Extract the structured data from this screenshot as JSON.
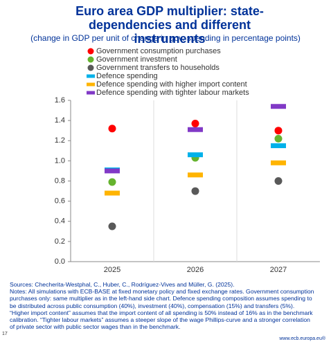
{
  "chart_data": {
    "type": "dot",
    "title": "Euro area GDP multiplier: state-dependencies and different instruments",
    "subtitle": "(change in GDP per unit of change in gov. spending in percentage points)",
    "categories": [
      "2025",
      "2026",
      "2027"
    ],
    "series": [
      {
        "name": "Government consumption purchases",
        "color": "#ff0000",
        "marker": "circle",
        "values": [
          1.32,
          1.37,
          1.3
        ]
      },
      {
        "name": "Government investment",
        "color": "#65b32e",
        "marker": "circle",
        "values": [
          0.79,
          1.03,
          1.22
        ]
      },
      {
        "name": "Government transfers to households",
        "color": "#595959",
        "marker": "circle",
        "values": [
          0.35,
          0.7,
          0.8
        ]
      },
      {
        "name": "Defence spending",
        "color": "#00b1ea",
        "marker": "dash",
        "values": [
          0.91,
          1.06,
          1.15
        ]
      },
      {
        "name": "Defence spending with higher import content",
        "color": "#ffb400",
        "marker": "dash",
        "values": [
          0.68,
          0.86,
          0.98
        ]
      },
      {
        "name": "Defence spending with tighter labour markets",
        "color": "#8139c6",
        "marker": "dash",
        "values": [
          0.9,
          1.31,
          1.54
        ]
      }
    ],
    "ylim": [
      0,
      1.6
    ],
    "yticks": [
      {
        "value": 0,
        "label": "0.0"
      },
      0.2,
      0.4,
      0.6,
      0.8,
      {
        "value": 1,
        "label": "1.0"
      },
      1.2,
      1.4,
      1.6
    ],
    "grid": false
  },
  "footer": {
    "sources": "Sources: Checherita-Westphal, C., Huber, C., Rodríguez-Vives and Müller, G. (2025).",
    "notes": "Notes: All simulations with ECB-BASE at fixed monetary policy and fixed exchange rates. Government consumption purchases only: same multiplier as in the left-hand side chart. Defence spending composition assumes spending to be distributed across public consumption (40%), investment (40%), compensation (15%) and transfers (5%). “Higher import content” assumes that the import content of all spending is 50% instead of 16% as in the benchmark calibration. “Tighter labour markets” assumes a steeper slope of the wage Phillips-curve and a stronger correlation of private sector with public sector wages than in the benchmark.",
    "page": "17",
    "url": "www.ecb.europa.eu®"
  }
}
